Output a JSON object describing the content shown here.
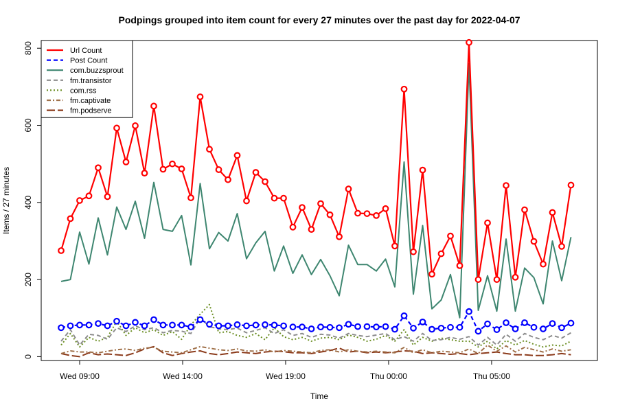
{
  "chart_data": {
    "type": "line",
    "title": "Podpings grouped into item count for every 27 minutes  over the past day for 2022-04-07",
    "xlabel": "Time",
    "ylabel": "Items / 27 minutes",
    "ylim": [
      -10,
      820
    ],
    "y_ticks": [
      0,
      200,
      400,
      600,
      800
    ],
    "x_ticks": [
      {
        "label": "Wed 09:00",
        "index": 2
      },
      {
        "label": "Wed 14:00",
        "index": 13.11
      },
      {
        "label": "Wed 19:00",
        "index": 24.22
      },
      {
        "label": "Thu 00:00",
        "index": 35.33
      },
      {
        "label": "Thu 05:00",
        "index": 46.44
      }
    ],
    "legend_position": "top-left",
    "grid": false,
    "series": [
      {
        "name": "Url Count",
        "color": "#ff0000",
        "dash": "solid",
        "markers": true,
        "values": [
          275,
          358,
          405,
          417,
          490,
          415,
          593,
          505,
          599,
          476,
          650,
          486,
          500,
          487,
          412,
          674,
          538,
          485,
          459,
          522,
          404,
          478,
          454,
          411,
          411,
          336,
          387,
          330,
          397,
          368,
          311,
          435,
          372,
          371,
          366,
          384,
          287,
          694,
          272,
          484,
          214,
          267,
          313,
          236,
          815,
          200,
          347,
          200,
          444,
          206,
          381,
          299,
          240,
          374,
          286,
          445
        ]
      },
      {
        "name": "Post Count",
        "color": "#0000ff",
        "dash": "dashed",
        "markers": true,
        "values": [
          75,
          80,
          82,
          82,
          86,
          80,
          92,
          80,
          89,
          80,
          96,
          82,
          82,
          82,
          77,
          96,
          84,
          80,
          80,
          83,
          80,
          82,
          83,
          82,
          80,
          77,
          77,
          72,
          77,
          76,
          75,
          84,
          78,
          78,
          77,
          78,
          71,
          106,
          74,
          90,
          71,
          74,
          76,
          76,
          117,
          66,
          85,
          70,
          88,
          72,
          88,
          76,
          72,
          86,
          75,
          87
        ]
      },
      {
        "name": "com.buzzsprout",
        "color": "#3e8670",
        "dash": "solid",
        "markers": false,
        "values": [
          195,
          200,
          323,
          240,
          360,
          264,
          388,
          330,
          403,
          307,
          452,
          330,
          325,
          366,
          238,
          449,
          280,
          322,
          300,
          371,
          254,
          295,
          325,
          222,
          287,
          216,
          264,
          213,
          252,
          210,
          158,
          289,
          239,
          239,
          222,
          253,
          181,
          505,
          162,
          340,
          124,
          147,
          213,
          101,
          760,
          120,
          210,
          118,
          305,
          118,
          230,
          205,
          137,
          300,
          197,
          310
        ]
      },
      {
        "name": "fm.transistor",
        "color": "#8c8c8c",
        "dash": "dashed",
        "markers": false,
        "values": [
          40,
          70,
          30,
          58,
          55,
          45,
          75,
          65,
          80,
          70,
          75,
          62,
          68,
          66,
          60,
          100,
          78,
          72,
          70,
          74,
          62,
          68,
          75,
          60,
          70,
          55,
          60,
          50,
          58,
          56,
          48,
          60,
          55,
          52,
          56,
          60,
          44,
          52,
          40,
          60,
          42,
          44,
          50,
          45,
          52,
          30,
          50,
          30,
          58,
          40,
          60,
          50,
          44,
          55,
          48,
          62
        ]
      },
      {
        "name": "com.rss",
        "color": "#6b8e23",
        "dash": "dotted",
        "markers": false,
        "values": [
          30,
          60,
          25,
          50,
          40,
          50,
          92,
          55,
          75,
          62,
          70,
          55,
          65,
          45,
          82,
          110,
          135,
          62,
          65,
          55,
          50,
          60,
          44,
          75,
          52,
          44,
          50,
          40,
          48,
          50,
          44,
          56,
          50,
          40,
          45,
          55,
          40,
          70,
          30,
          50,
          40,
          48,
          44,
          40,
          40,
          25,
          40,
          20,
          42,
          30,
          42,
          32,
          25,
          30,
          28,
          40
        ]
      },
      {
        "name": "fm.captivate",
        "color": "#a0714a",
        "dash": "dashdot",
        "markers": false,
        "values": [
          8,
          15,
          12,
          12,
          10,
          14,
          18,
          20,
          16,
          22,
          24,
          14,
          12,
          10,
          18,
          26,
          22,
          18,
          16,
          20,
          15,
          14,
          18,
          12,
          16,
          14,
          12,
          10,
          16,
          18,
          12,
          18,
          14,
          12,
          14,
          12,
          10,
          24,
          10,
          18,
          10,
          14,
          12,
          10,
          20,
          8,
          30,
          14,
          28,
          12,
          24,
          18,
          12,
          20,
          14,
          18
        ]
      },
      {
        "name": "fm.podserve",
        "color": "#8b3a1a",
        "dash": "longdash",
        "markers": false,
        "values": [
          8,
          3,
          0,
          10,
          5,
          7,
          5,
          3,
          10,
          20,
          26,
          10,
          3,
          8,
          12,
          15,
          8,
          5,
          8,
          12,
          10,
          8,
          12,
          14,
          13,
          10,
          10,
          8,
          12,
          16,
          22,
          12,
          14,
          10,
          12,
          10,
          12,
          15,
          14,
          8,
          10,
          8,
          6,
          8,
          5,
          8,
          10,
          12,
          8,
          5,
          5,
          3,
          3,
          5,
          8,
          5
        ]
      }
    ]
  }
}
